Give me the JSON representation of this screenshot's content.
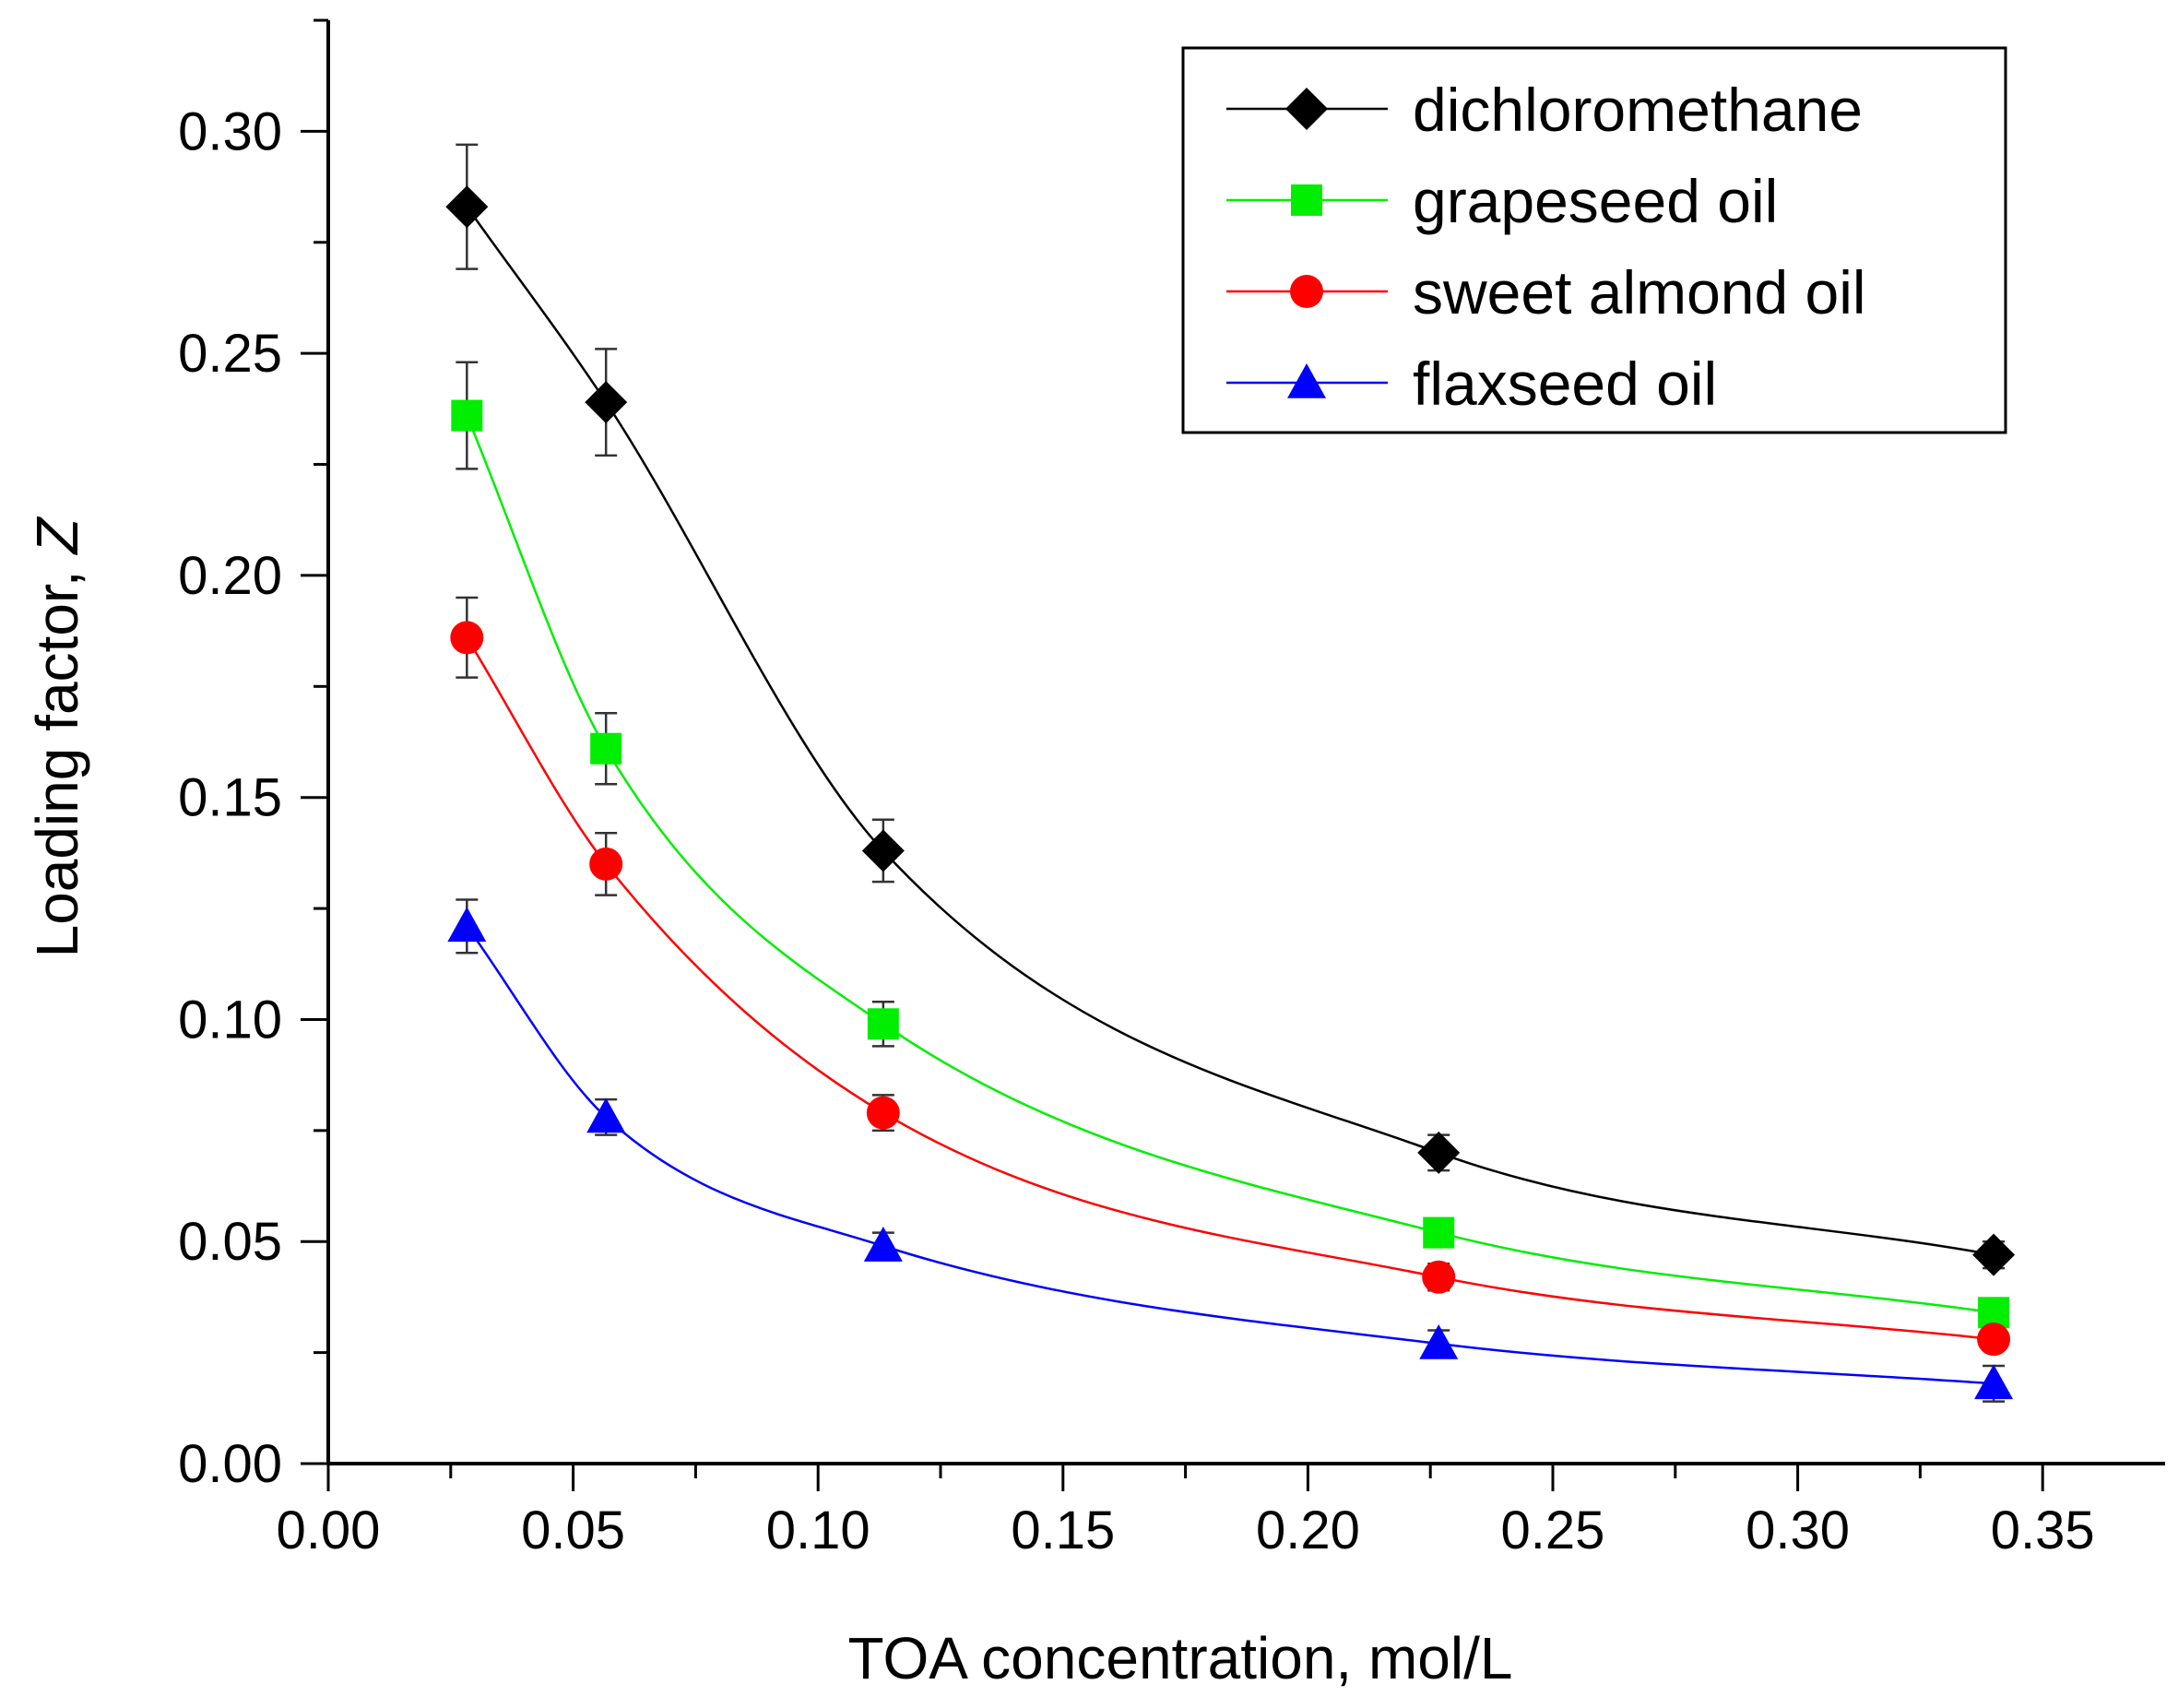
{
  "chart_data": {
    "type": "line",
    "title": "",
    "xlabel": "TOA concentration, mol/L",
    "ylabel": "Loading factor, ",
    "ylabel_italic": "Z",
    "xlim": [
      0,
      0.375
    ],
    "ylim": [
      0,
      0.325
    ],
    "xticks": [
      "0.00",
      "0.05",
      "0.10",
      "0.15",
      "0.20",
      "0.25",
      "0.30",
      "0.35"
    ],
    "yticks": [
      "0.00",
      "0.05",
      "0.10",
      "0.15",
      "0.20",
      "0.25",
      "0.30"
    ],
    "x": [
      0.0283,
      0.0567,
      0.1133,
      0.2267,
      0.34
    ],
    "legend_position": "top-right",
    "grid": false,
    "series": [
      {
        "name": "dichloromethane",
        "color": "#000000",
        "marker": "diamond",
        "values": [
          0.283,
          0.239,
          0.138,
          0.07,
          0.047
        ],
        "errors": [
          0.014,
          0.012,
          0.007,
          0.004,
          0.003
        ]
      },
      {
        "name": "grapeseed oil",
        "color": "#00ee00",
        "marker": "square",
        "values": [
          0.236,
          0.161,
          0.099,
          0.052,
          0.034
        ],
        "errors": [
          0.012,
          0.008,
          0.005,
          0.003,
          0.003
        ]
      },
      {
        "name": "sweet almond oil",
        "color": "#ff0000",
        "marker": "circle",
        "values": [
          0.186,
          0.135,
          0.079,
          0.042,
          0.028
        ],
        "errors": [
          0.009,
          0.007,
          0.004,
          0.003,
          0.002
        ]
      },
      {
        "name": "flaxseed oil",
        "color": "#0000ff",
        "marker": "triangle",
        "values": [
          0.121,
          0.078,
          0.049,
          0.027,
          0.018
        ],
        "errors": [
          0.006,
          0.004,
          0.003,
          0.003,
          0.004
        ]
      }
    ]
  }
}
